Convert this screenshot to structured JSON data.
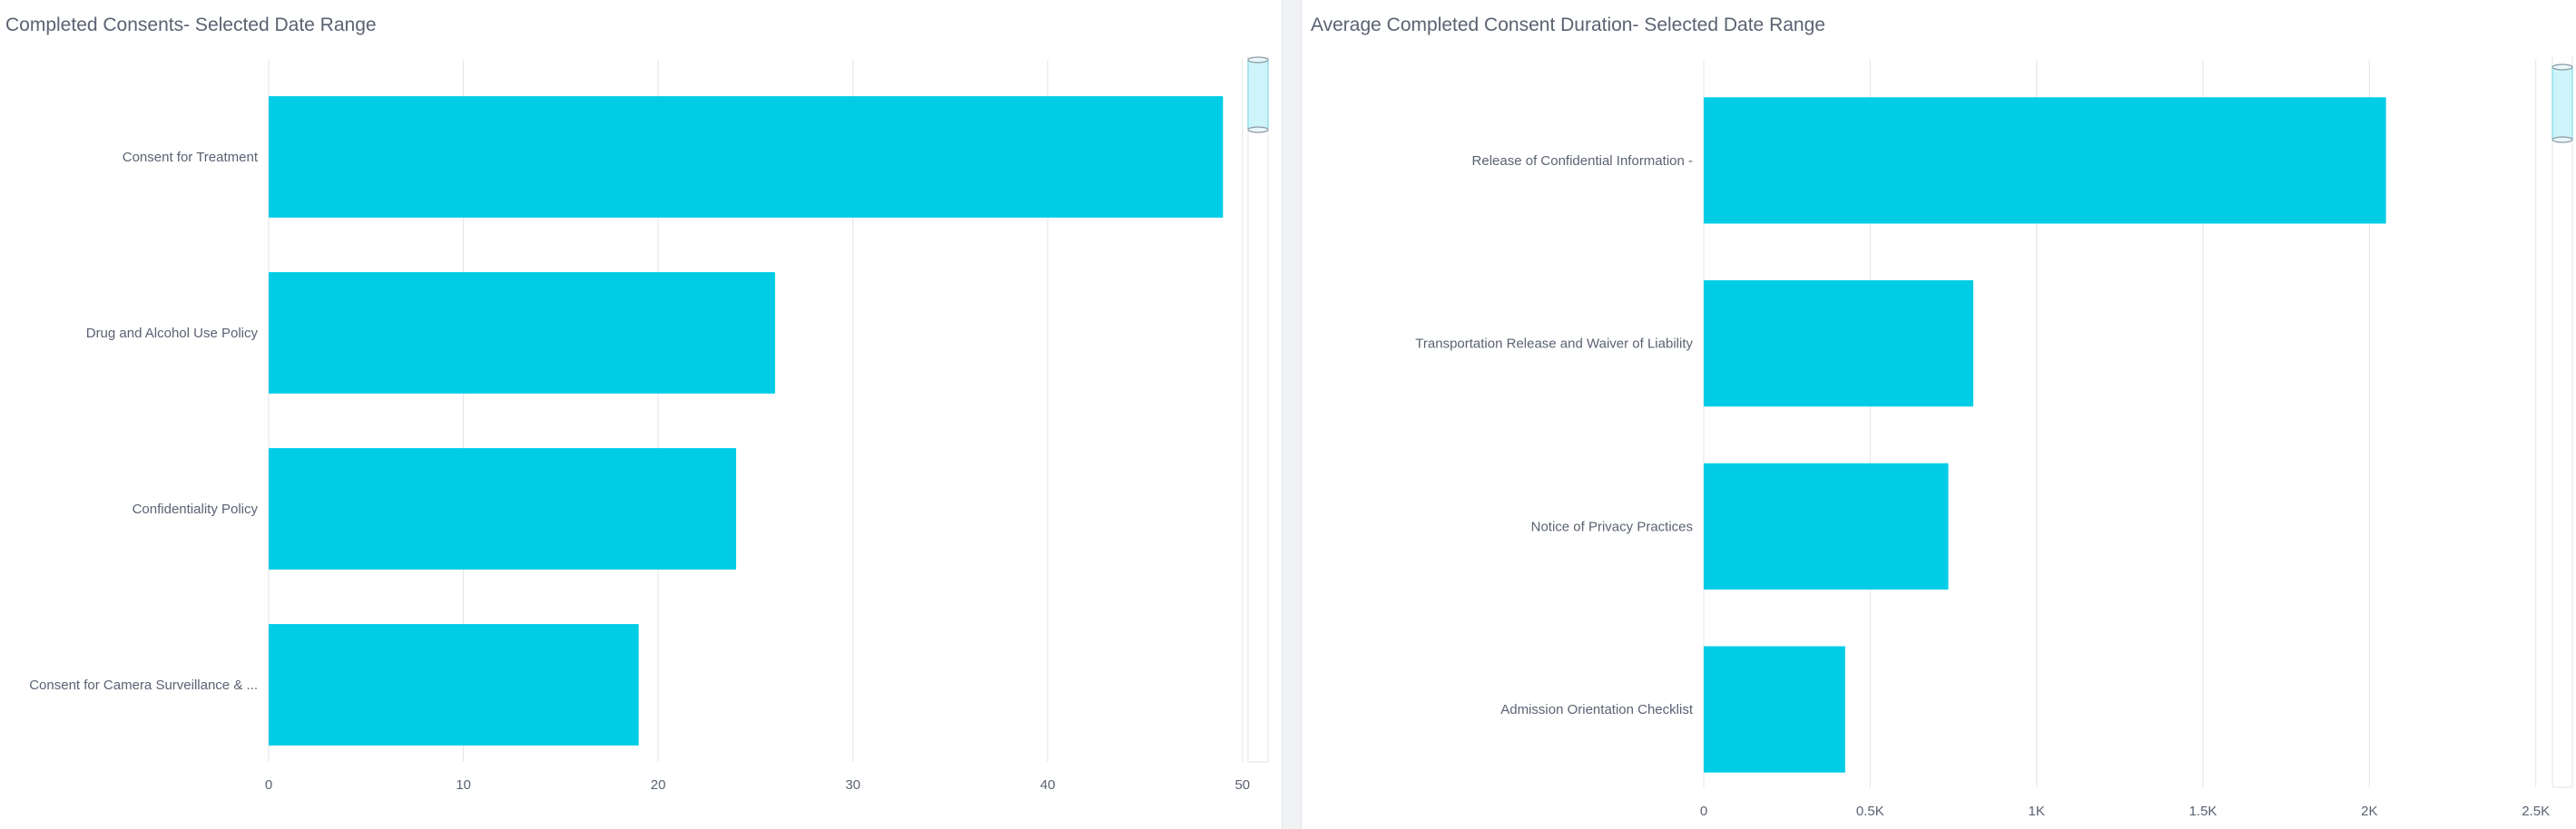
{
  "colors": {
    "bar": "#00cce6",
    "grid": "#e6e8eb",
    "text": "#5a6272",
    "scroll_fill": "#cdf4fa",
    "scroll_border": "#87dbe8"
  },
  "left_panel": {
    "title": "Completed Consents- Selected Date Range"
  },
  "right_panel": {
    "title": "Average Completed Consent Duration- Selected Date Range"
  },
  "chart_data": [
    {
      "type": "bar",
      "orientation": "horizontal",
      "title": "Completed Consents- Selected Date Range",
      "categories": [
        "Consent for Treatment",
        "Drug and Alcohol Use Policy",
        "Confidentiality Policy",
        "Consent for Camera Surveillance & ..."
      ],
      "values": [
        49,
        26,
        24,
        19
      ],
      "xlim": [
        0,
        51.5
      ],
      "xticks": [
        0,
        10,
        20,
        30,
        40,
        50
      ],
      "xtick_labels": [
        "0",
        "10",
        "20",
        "30",
        "40",
        "50"
      ],
      "grid": true
    },
    {
      "type": "bar",
      "orientation": "horizontal",
      "title": "Average Completed Consent Duration- Selected Date Range",
      "categories": [
        "Release of Confidential Information -",
        "Transportation Release and Waiver of Liability",
        "Notice of Privacy Practices",
        "Admission Orientation Checklist"
      ],
      "values": [
        2050,
        810,
        735,
        425
      ],
      "xlim": [
        0,
        2520
      ],
      "xticks": [
        0,
        500,
        1000,
        1500,
        2000,
        2500
      ],
      "xtick_labels": [
        "0",
        "0.5K",
        "1K",
        "1.5K",
        "2K",
        "2.5K"
      ],
      "grid": true
    }
  ]
}
